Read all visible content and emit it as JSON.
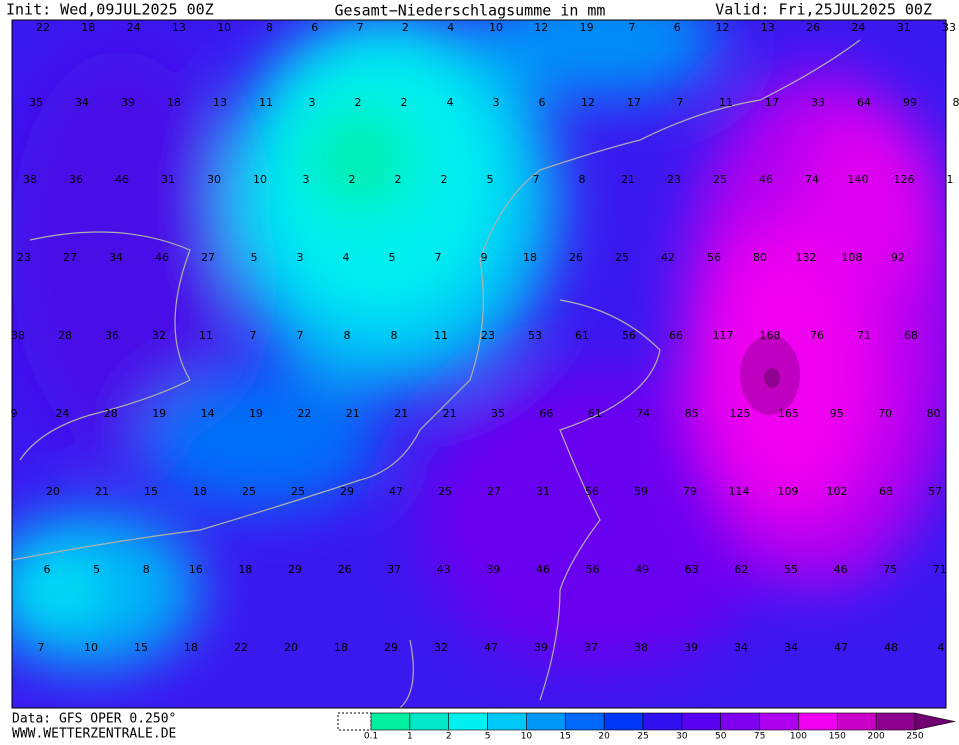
{
  "header": {
    "init": "Init: Wed,09JUL2025 00Z",
    "title": "Gesamt−Niederschlagsumme in mm",
    "valid": "Valid: Fri,25JUL2025 00Z"
  },
  "footer": {
    "data": "Data: GFS OPER 0.250°",
    "site": "WWW.WETTERZENTRALE.DE"
  },
  "grid_values": [
    [
      "22",
      "18",
      "24",
      "13",
      "10",
      "8",
      "6",
      "7",
      "2",
      "4",
      "10",
      "12",
      "19",
      "7",
      "6",
      "12",
      "13",
      "26",
      "24",
      "31",
      "33"
    ],
    [
      "35",
      "34",
      "39",
      "18",
      "13",
      "11",
      "3",
      "2",
      "2",
      "4",
      "3",
      "6",
      "12",
      "17",
      "7",
      "11",
      "17",
      "33",
      "64",
      "99",
      "8"
    ],
    [
      "38",
      "36",
      "46",
      "31",
      "30",
      "10",
      "3",
      "2",
      "2",
      "2",
      "5",
      "7",
      "8",
      "21",
      "23",
      "25",
      "46",
      "74",
      "140",
      "126",
      "1"
    ],
    [
      "23",
      "27",
      "34",
      "46",
      "27",
      "5",
      "3",
      "4",
      "5",
      "7",
      "9",
      "18",
      "26",
      "25",
      "42",
      "56",
      "80",
      "132",
      "108",
      "92"
    ],
    [
      "38",
      "28",
      "36",
      "32",
      "11",
      "7",
      "7",
      "8",
      "8",
      "11",
      "23",
      "53",
      "61",
      "56",
      "66",
      "117",
      "168",
      "76",
      "71",
      "68"
    ],
    [
      "9",
      "24",
      "28",
      "19",
      "14",
      "19",
      "22",
      "21",
      "21",
      "21",
      "35",
      "66",
      "61",
      "74",
      "85",
      "125",
      "165",
      "95",
      "70",
      "80"
    ],
    [
      "20",
      "21",
      "15",
      "18",
      "25",
      "25",
      "29",
      "47",
      "25",
      "27",
      "31",
      "56",
      "59",
      "79",
      "114",
      "109",
      "102",
      "68",
      "57"
    ],
    [
      "6",
      "5",
      "8",
      "16",
      "18",
      "29",
      "26",
      "37",
      "43",
      "39",
      "46",
      "56",
      "49",
      "63",
      "62",
      "55",
      "46",
      "75",
      "71"
    ],
    [
      "7",
      "10",
      "15",
      "18",
      "22",
      "20",
      "18",
      "29",
      "32",
      "47",
      "39",
      "37",
      "38",
      "39",
      "34",
      "34",
      "47",
      "48",
      "4"
    ]
  ],
  "legend": {
    "labels": [
      "0.1",
      "1",
      "2",
      "5",
      "10",
      "15",
      "20",
      "25",
      "30",
      "50",
      "75",
      "100",
      "150",
      "200",
      "250"
    ],
    "colors": [
      "#00f0a0",
      "#00e8c8",
      "#00f0f0",
      "#00c8f8",
      "#0098f8",
      "#0068f8",
      "#0038f8",
      "#3010f0",
      "#5800f0",
      "#8000f0",
      "#b000f0",
      "#f000f0",
      "#c800c8",
      "#900090"
    ]
  }
}
